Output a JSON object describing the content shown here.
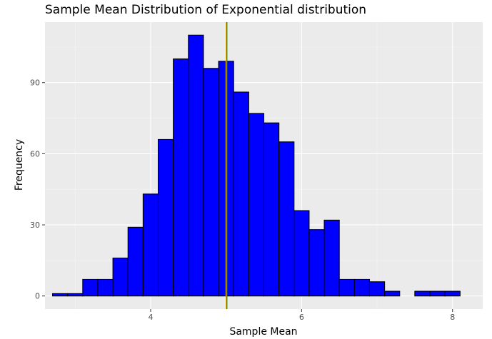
{
  "chart_data": {
    "type": "histogram",
    "title": "Sample Mean Distribution of Exponential distribution",
    "xlabel": "Sample Mean",
    "ylabel": "Frequency",
    "xlim": [
      2.6,
      8.4
    ],
    "ylim": [
      -5.5,
      115.5
    ],
    "x_ticks": [
      4,
      6,
      8
    ],
    "x_tick_labels": [
      "4",
      "6",
      "8"
    ],
    "y_ticks": [
      0,
      30,
      60,
      90
    ],
    "y_tick_labels": [
      "0",
      "30",
      "60",
      "90"
    ],
    "minor_x": [
      3,
      5,
      7
    ],
    "minor_y": [
      15,
      45,
      75,
      105
    ],
    "bin_width": 0.2,
    "bin_starts": [
      2.7,
      2.9,
      3.1,
      3.3,
      3.5,
      3.7,
      3.9,
      4.1,
      4.3,
      4.5,
      4.7,
      4.9,
      5.1,
      5.3,
      5.5,
      5.7,
      5.9,
      6.1,
      6.3,
      6.5,
      6.7,
      6.9,
      7.1,
      7.3,
      7.5,
      7.7,
      7.9
    ],
    "counts": [
      1,
      1,
      7,
      7,
      16,
      29,
      43,
      66,
      100,
      110,
      96,
      99,
      86,
      77,
      73,
      65,
      36,
      28,
      32,
      7,
      7,
      6,
      2,
      0,
      2,
      2,
      2
    ],
    "vlines": [
      {
        "name": "theoretical-mean",
        "x": 5.0,
        "color": "#F5C518"
      },
      {
        "name": "sample-mean",
        "x": 5.01,
        "color": "#228B22"
      }
    ],
    "colors": {
      "bar_fill": "#0000FF",
      "bar_border": "#000000",
      "panel_background": "#EBEBEB",
      "grid_major": "#FFFFFF",
      "grid_minor": "#F5F5F5",
      "tick_label": "#4D4D4D"
    }
  }
}
